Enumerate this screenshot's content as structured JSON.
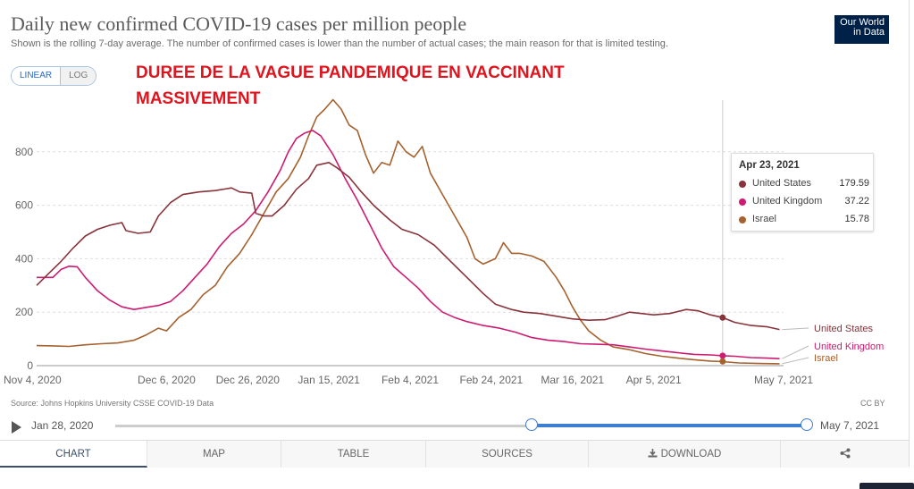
{
  "header": {
    "title": "Daily new confirmed COVID-19 cases per million people",
    "subtitle": "Shown is the rolling 7-day average. The number of confirmed cases is lower than the number of actual cases; the main reason for that is limited testing.",
    "logo_line1": "Our World",
    "logo_line2": "in Data"
  },
  "controls": {
    "linear_label": "LINEAR",
    "log_label": "LOG"
  },
  "annotation": "DUREE DE LA VAGUE PANDEMIQUE EN VACCINANT MASSIVEMENT",
  "colors": {
    "us": "#88333b",
    "uk": "#ce1b72",
    "israel": "#a5612e",
    "accent": "#3e7dd2",
    "annotation": "#e0141e"
  },
  "chart_data": {
    "type": "line",
    "title": "Daily new confirmed COVID-19 cases per million people",
    "ylabel": "",
    "xlabel": "",
    "ylim": [
      0,
      1000
    ],
    "yticks": [
      0,
      200,
      400,
      600,
      800
    ],
    "x_range_days": [
      0,
      184
    ],
    "x_ticks": [
      {
        "day": 0,
        "label": "Nov 4, 2020"
      },
      {
        "day": 32,
        "label": "Dec 6, 2020"
      },
      {
        "day": 52,
        "label": "Dec 26, 2020"
      },
      {
        "day": 72,
        "label": "Jan 15, 2021"
      },
      {
        "day": 92,
        "label": "Feb 4, 2021"
      },
      {
        "day": 112,
        "label": "Feb 24, 2021"
      },
      {
        "day": 132,
        "label": "Mar 16, 2021"
      },
      {
        "day": 152,
        "label": "Apr 5, 2021"
      },
      {
        "day": 184,
        "label": "May 7, 2021"
      }
    ],
    "series": [
      {
        "name": "United States",
        "color_key": "us",
        "points": [
          [
            0,
            300
          ],
          [
            3,
            345
          ],
          [
            6,
            390
          ],
          [
            9,
            440
          ],
          [
            12,
            485
          ],
          [
            15,
            510
          ],
          [
            18,
            525
          ],
          [
            21,
            535
          ],
          [
            22,
            505
          ],
          [
            25,
            495
          ],
          [
            28,
            500
          ],
          [
            30,
            560
          ],
          [
            33,
            610
          ],
          [
            36,
            640
          ],
          [
            40,
            650
          ],
          [
            44,
            655
          ],
          [
            48,
            665
          ],
          [
            50,
            650
          ],
          [
            53,
            645
          ],
          [
            54,
            570
          ],
          [
            56,
            560
          ],
          [
            58,
            560
          ],
          [
            61,
            600
          ],
          [
            64,
            660
          ],
          [
            67,
            700
          ],
          [
            69,
            750
          ],
          [
            72,
            760
          ],
          [
            74,
            740
          ],
          [
            77,
            705
          ],
          [
            80,
            650
          ],
          [
            83,
            600
          ],
          [
            87,
            545
          ],
          [
            90,
            510
          ],
          [
            94,
            490
          ],
          [
            98,
            450
          ],
          [
            102,
            390
          ],
          [
            106,
            330
          ],
          [
            110,
            270
          ],
          [
            113,
            230
          ],
          [
            117,
            210
          ],
          [
            120,
            200
          ],
          [
            124,
            195
          ],
          [
            128,
            185
          ],
          [
            132,
            175
          ],
          [
            136,
            170
          ],
          [
            140,
            172
          ],
          [
            143,
            185
          ],
          [
            146,
            200
          ],
          [
            149,
            195
          ],
          [
            152,
            190
          ],
          [
            156,
            195
          ],
          [
            160,
            210
          ],
          [
            163,
            205
          ],
          [
            166,
            190
          ],
          [
            169,
            180
          ],
          [
            172,
            162
          ],
          [
            176,
            150
          ],
          [
            180,
            145
          ],
          [
            183,
            135
          ]
        ]
      },
      {
        "name": "United Kingdom",
        "color_key": "uk",
        "points": [
          [
            0,
            330
          ],
          [
            4,
            330
          ],
          [
            6,
            360
          ],
          [
            8,
            372
          ],
          [
            10,
            370
          ],
          [
            12,
            330
          ],
          [
            15,
            280
          ],
          [
            18,
            245
          ],
          [
            21,
            220
          ],
          [
            24,
            210
          ],
          [
            27,
            218
          ],
          [
            30,
            225
          ],
          [
            33,
            240
          ],
          [
            36,
            280
          ],
          [
            39,
            330
          ],
          [
            42,
            380
          ],
          [
            45,
            445
          ],
          [
            48,
            495
          ],
          [
            51,
            530
          ],
          [
            54,
            580
          ],
          [
            57,
            650
          ],
          [
            60,
            730
          ],
          [
            62,
            800
          ],
          [
            64,
            850
          ],
          [
            66,
            870
          ],
          [
            68,
            880
          ],
          [
            70,
            860
          ],
          [
            73,
            790
          ],
          [
            76,
            700
          ],
          [
            79,
            620
          ],
          [
            82,
            530
          ],
          [
            85,
            440
          ],
          [
            88,
            370
          ],
          [
            91,
            330
          ],
          [
            94,
            290
          ],
          [
            97,
            240
          ],
          [
            100,
            200
          ],
          [
            103,
            180
          ],
          [
            106,
            165
          ],
          [
            110,
            150
          ],
          [
            114,
            140
          ],
          [
            118,
            125
          ],
          [
            122,
            105
          ],
          [
            126,
            95
          ],
          [
            130,
            90
          ],
          [
            134,
            82
          ],
          [
            138,
            80
          ],
          [
            142,
            78
          ],
          [
            146,
            70
          ],
          [
            150,
            62
          ],
          [
            154,
            55
          ],
          [
            158,
            48
          ],
          [
            162,
            42
          ],
          [
            166,
            40
          ],
          [
            169,
            37
          ],
          [
            172,
            35
          ],
          [
            176,
            30
          ],
          [
            180,
            28
          ],
          [
            183,
            26
          ]
        ]
      },
      {
        "name": "Israel",
        "color_key": "israel",
        "points": [
          [
            0,
            75
          ],
          [
            4,
            74
          ],
          [
            8,
            72
          ],
          [
            12,
            78
          ],
          [
            16,
            82
          ],
          [
            20,
            85
          ],
          [
            24,
            95
          ],
          [
            27,
            115
          ],
          [
            30,
            140
          ],
          [
            32,
            130
          ],
          [
            35,
            180
          ],
          [
            38,
            210
          ],
          [
            41,
            265
          ],
          [
            44,
            300
          ],
          [
            47,
            370
          ],
          [
            50,
            420
          ],
          [
            53,
            490
          ],
          [
            56,
            570
          ],
          [
            59,
            650
          ],
          [
            62,
            700
          ],
          [
            65,
            780
          ],
          [
            67,
            860
          ],
          [
            69,
            930
          ],
          [
            71,
            960
          ],
          [
            73,
            995
          ],
          [
            75,
            960
          ],
          [
            77,
            900
          ],
          [
            79,
            880
          ],
          [
            81,
            790
          ],
          [
            83,
            720
          ],
          [
            85,
            760
          ],
          [
            87,
            750
          ],
          [
            89,
            840
          ],
          [
            91,
            800
          ],
          [
            93,
            780
          ],
          [
            95,
            820
          ],
          [
            97,
            720
          ],
          [
            100,
            640
          ],
          [
            103,
            560
          ],
          [
            106,
            480
          ],
          [
            108,
            400
          ],
          [
            110,
            380
          ],
          [
            113,
            400
          ],
          [
            115,
            460
          ],
          [
            117,
            420
          ],
          [
            119,
            420
          ],
          [
            122,
            410
          ],
          [
            125,
            390
          ],
          [
            128,
            330
          ],
          [
            130,
            280
          ],
          [
            132,
            220
          ],
          [
            134,
            170
          ],
          [
            136,
            130
          ],
          [
            139,
            95
          ],
          [
            142,
            70
          ],
          [
            146,
            60
          ],
          [
            150,
            45
          ],
          [
            154,
            35
          ],
          [
            158,
            28
          ],
          [
            162,
            22
          ],
          [
            166,
            17
          ],
          [
            169,
            15
          ],
          [
            173,
            10
          ],
          [
            178,
            8
          ],
          [
            183,
            7
          ]
        ]
      }
    ],
    "cursor_day": 169,
    "tooltip": {
      "date": "Apr 23, 2021",
      "rows": [
        {
          "name": "United States",
          "value": "179.59",
          "color_key": "us"
        },
        {
          "name": "United Kingdom",
          "value": "37.22",
          "color_key": "uk"
        },
        {
          "name": "Israel",
          "value": "15.78",
          "color_key": "israel"
        }
      ]
    },
    "legend": [
      {
        "name": "United States",
        "color_key": "us"
      },
      {
        "name": "United Kingdom",
        "color_key": "uk"
      },
      {
        "name": "Israel",
        "color_key": "israel"
      }
    ]
  },
  "footer": {
    "source": "Source: Johns Hopkins University CSSE COVID-19 Data",
    "license": "CC BY",
    "timeline_start": "Jan 28, 2020",
    "timeline_end": "May 7, 2021"
  },
  "tabs": [
    {
      "label": "CHART",
      "active": true
    },
    {
      "label": "MAP",
      "active": false
    },
    {
      "label": "TABLE",
      "active": false
    },
    {
      "label": "SOURCES",
      "active": false
    },
    {
      "label": "DOWNLOAD",
      "active": false
    },
    {
      "label": "",
      "active": false
    }
  ]
}
